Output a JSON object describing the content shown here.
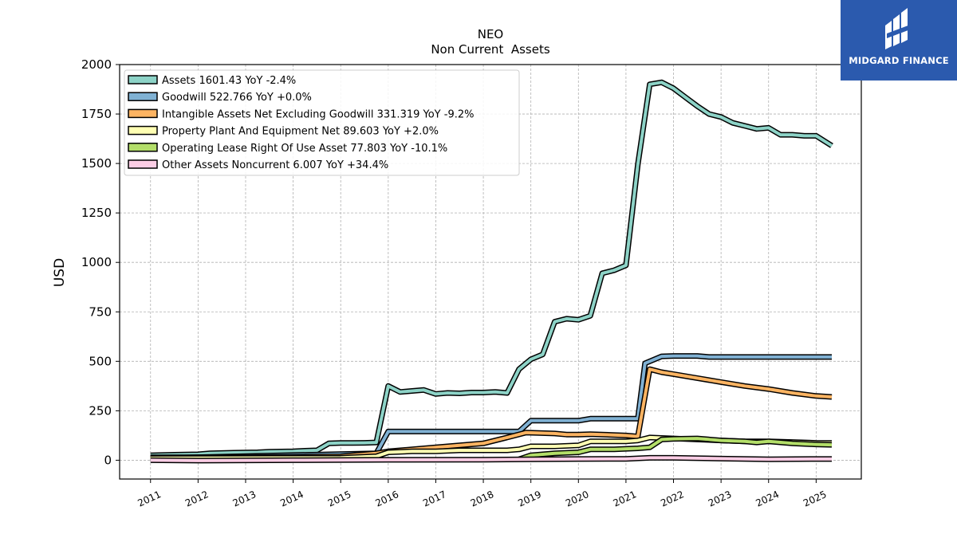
{
  "logo": {
    "text": "MIDGARD FINANCE",
    "icon": "midgard-logo-icon"
  },
  "chart_data": {
    "type": "line",
    "title": "NEO",
    "subtitle": "Non Current  Assets",
    "ylabel": "USD",
    "xlabel": "",
    "xlim": [
      2010.35,
      2025.95
    ],
    "ylim": [
      -95,
      2000
    ],
    "yticks": [
      0,
      250,
      500,
      750,
      1000,
      1250,
      1500,
      1750,
      2000
    ],
    "xticks": [
      2011,
      2012,
      2013,
      2014,
      2015,
      2016,
      2017,
      2018,
      2019,
      2020,
      2021,
      2022,
      2023,
      2024,
      2025
    ],
    "xtick_labels": [
      "2011",
      "2012",
      "2013",
      "2014",
      "2015",
      "2016",
      "2017",
      "2018",
      "2019",
      "2020",
      "2021",
      "2022",
      "2023",
      "2024",
      "2025"
    ],
    "grid": true,
    "legend_position": "top-left",
    "series": [
      {
        "name": "Assets",
        "legend": "Assets  1601.43 YoY -2.4%",
        "color": "#8dd3c7",
        "points": [
          [
            2011.0,
            25
          ],
          [
            2011.5,
            28
          ],
          [
            2012.0,
            30
          ],
          [
            2012.25,
            35
          ],
          [
            2012.75,
            38
          ],
          [
            2013.25,
            40
          ],
          [
            2013.5,
            43
          ],
          [
            2014.0,
            45
          ],
          [
            2014.25,
            48
          ],
          [
            2014.5,
            50
          ],
          [
            2014.75,
            85
          ],
          [
            2015.0,
            87
          ],
          [
            2015.25,
            87
          ],
          [
            2015.5,
            88
          ],
          [
            2015.75,
            90
          ],
          [
            2016.0,
            375
          ],
          [
            2016.25,
            345
          ],
          [
            2016.5,
            350
          ],
          [
            2016.75,
            355
          ],
          [
            2017.0,
            335
          ],
          [
            2017.25,
            340
          ],
          [
            2017.5,
            338
          ],
          [
            2017.75,
            342
          ],
          [
            2018.0,
            342
          ],
          [
            2018.25,
            345
          ],
          [
            2018.5,
            340
          ],
          [
            2018.75,
            460
          ],
          [
            2019.0,
            510
          ],
          [
            2019.25,
            535
          ],
          [
            2019.5,
            700
          ],
          [
            2019.75,
            715
          ],
          [
            2020.0,
            710
          ],
          [
            2020.25,
            730
          ],
          [
            2020.5,
            945
          ],
          [
            2020.75,
            960
          ],
          [
            2021.0,
            985
          ],
          [
            2021.25,
            1495
          ],
          [
            2021.5,
            1900
          ],
          [
            2021.75,
            1910
          ],
          [
            2022.0,
            1880
          ],
          [
            2022.25,
            1835
          ],
          [
            2022.5,
            1790
          ],
          [
            2022.75,
            1750
          ],
          [
            2023.0,
            1735
          ],
          [
            2023.25,
            1705
          ],
          [
            2023.5,
            1690
          ],
          [
            2023.75,
            1675
          ],
          [
            2024.0,
            1680
          ],
          [
            2024.25,
            1645
          ],
          [
            2024.5,
            1645
          ],
          [
            2024.75,
            1640
          ],
          [
            2025.0,
            1640
          ],
          [
            2025.33,
            1590
          ]
        ]
      },
      {
        "name": "Goodwill",
        "legend": "Goodwill  522.766 YoY +0.0%",
        "color": "#80b1d3",
        "points": [
          [
            2011.0,
            10
          ],
          [
            2015.75,
            35
          ],
          [
            2016.0,
            145
          ],
          [
            2016.5,
            145
          ],
          [
            2017.0,
            145
          ],
          [
            2017.5,
            145
          ],
          [
            2018.0,
            145
          ],
          [
            2018.75,
            145
          ],
          [
            2019.0,
            200
          ],
          [
            2019.5,
            200
          ],
          [
            2020.0,
            200
          ],
          [
            2020.25,
            210
          ],
          [
            2020.75,
            210
          ],
          [
            2021.25,
            210
          ],
          [
            2021.4,
            490
          ],
          [
            2021.75,
            525
          ],
          [
            2022.0,
            527
          ],
          [
            2022.5,
            527
          ],
          [
            2022.75,
            522
          ],
          [
            2023.0,
            522
          ],
          [
            2023.5,
            522
          ],
          [
            2024.0,
            522
          ],
          [
            2024.5,
            522
          ],
          [
            2025.0,
            522
          ],
          [
            2025.33,
            522
          ]
        ]
      },
      {
        "name": "Intangible Assets Net Excluding Goodwill",
        "legend": "Intangible Assets Net Excluding Goodwill  331.319 YoY -9.2%",
        "color": "#fdb462",
        "points": [
          [
            2011.0,
            15
          ],
          [
            2013.0,
            15
          ],
          [
            2015.0,
            20
          ],
          [
            2015.75,
            35
          ],
          [
            2016.0,
            45
          ],
          [
            2017.0,
            65
          ],
          [
            2018.0,
            85
          ],
          [
            2018.5,
            115
          ],
          [
            2018.9,
            140
          ],
          [
            2019.5,
            135
          ],
          [
            2019.75,
            130
          ],
          [
            2020.0,
            130
          ],
          [
            2020.25,
            132
          ],
          [
            2020.5,
            130
          ],
          [
            2021.0,
            125
          ],
          [
            2021.25,
            120
          ],
          [
            2021.5,
            460
          ],
          [
            2021.75,
            445
          ],
          [
            2022.0,
            435
          ],
          [
            2022.5,
            415
          ],
          [
            2023.0,
            395
          ],
          [
            2023.5,
            375
          ],
          [
            2024.0,
            360
          ],
          [
            2024.5,
            340
          ],
          [
            2025.0,
            325
          ],
          [
            2025.33,
            320
          ]
        ]
      },
      {
        "name": "Property Plant And Equipment Net",
        "legend": "Property Plant And Equipment Net  89.603 YoY +2.0%",
        "color": "#ffffb3",
        "points": [
          [
            2011.0,
            10
          ],
          [
            2015.0,
            12
          ],
          [
            2015.75,
            20
          ],
          [
            2016.0,
            40
          ],
          [
            2016.5,
            45
          ],
          [
            2017.0,
            45
          ],
          [
            2017.5,
            50
          ],
          [
            2018.0,
            50
          ],
          [
            2018.5,
            50
          ],
          [
            2018.75,
            55
          ],
          [
            2019.0,
            70
          ],
          [
            2019.5,
            70
          ],
          [
            2020.0,
            75
          ],
          [
            2020.25,
            95
          ],
          [
            2020.5,
            95
          ],
          [
            2021.0,
            95
          ],
          [
            2021.25,
            100
          ],
          [
            2021.5,
            115
          ],
          [
            2022.0,
            110
          ],
          [
            2022.5,
            105
          ],
          [
            2023.0,
            100
          ],
          [
            2023.5,
            95
          ],
          [
            2024.0,
            95
          ],
          [
            2024.5,
            92
          ],
          [
            2025.0,
            88
          ],
          [
            2025.33,
            87
          ]
        ]
      },
      {
        "name": "Operating Lease Right Of Use Asset",
        "legend": "Operating Lease Right Of Use Asset  77.803 YoY -10.1%",
        "color": "#b3de69",
        "points": [
          [
            2018.75,
            5
          ],
          [
            2019.0,
            25
          ],
          [
            2019.5,
            35
          ],
          [
            2020.0,
            40
          ],
          [
            2020.25,
            55
          ],
          [
            2020.75,
            55
          ],
          [
            2021.25,
            60
          ],
          [
            2021.5,
            65
          ],
          [
            2021.75,
            105
          ],
          [
            2022.0,
            108
          ],
          [
            2022.5,
            110
          ],
          [
            2023.0,
            100
          ],
          [
            2023.5,
            95
          ],
          [
            2023.75,
            90
          ],
          [
            2024.0,
            95
          ],
          [
            2024.5,
            85
          ],
          [
            2025.0,
            80
          ],
          [
            2025.33,
            78
          ]
        ]
      },
      {
        "name": "Other Assets Noncurrent",
        "legend": "Other Assets Noncurrent  6.007 YoY +34.4%",
        "color": "#fccde5",
        "points": [
          [
            2011.0,
            0
          ],
          [
            2012.0,
            -2
          ],
          [
            2014.0,
            0
          ],
          [
            2016.0,
            2
          ],
          [
            2018.0,
            3
          ],
          [
            2019.0,
            5
          ],
          [
            2020.0,
            6
          ],
          [
            2021.0,
            7
          ],
          [
            2021.5,
            12
          ],
          [
            2022.0,
            12
          ],
          [
            2023.0,
            8
          ],
          [
            2024.0,
            5
          ],
          [
            2025.0,
            6
          ],
          [
            2025.33,
            6
          ]
        ]
      }
    ]
  }
}
